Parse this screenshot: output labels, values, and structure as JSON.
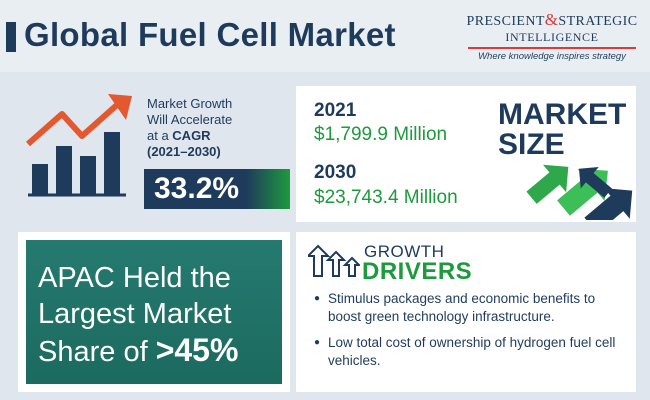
{
  "header": {
    "title": "Global Fuel Cell Market",
    "logo": {
      "word1": "PRESCIENT",
      "amp": "&",
      "word2": "STRATEGIC",
      "line2": "INTELLIGENCE",
      "tagline": "Where knowledge inspires strategy"
    }
  },
  "cagr": {
    "line1": "Market Growth",
    "line2": "Will Accelerate",
    "line3_prefix": "at a ",
    "line3_strong": "CAGR",
    "period": "(2021–2030)",
    "value": "33.2%",
    "icon": "bar-chart-growth-icon"
  },
  "market_size": {
    "title_line1": "MARKET",
    "title_line2": "SIZE",
    "entries": [
      {
        "year": "2021",
        "amount": "$1,799.9 Million"
      },
      {
        "year": "2030",
        "amount": "$23,743.4 Million"
      }
    ],
    "icon": "upward-arrows-icon"
  },
  "apac": {
    "line1": "APAC Held the",
    "line2": "Largest Market",
    "line3_prefix": "Share of ",
    "line3_value": ">45%"
  },
  "drivers": {
    "title_line1": "GROWTH",
    "title_line2": "DRIVERS",
    "icon": "growth-arrows-icon",
    "items": [
      "Stimulus packages and economic benefits to boost green technology infrastructure.",
      "Low total cost of ownership of hydrogen fuel cell vehicles."
    ]
  },
  "colors": {
    "navy": "#1f3b5c",
    "green": "#1e9a3e",
    "teal": "#257a6f",
    "red": "#d93b3b",
    "background": "#dfe6ee"
  }
}
